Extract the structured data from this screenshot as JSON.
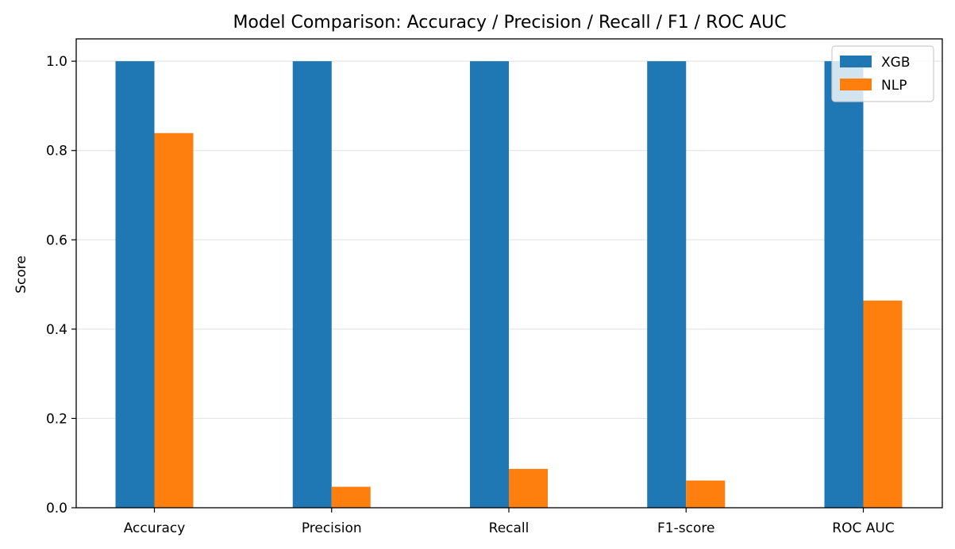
{
  "chart_data": {
    "type": "bar",
    "title": "Model Comparison: Accuracy / Precision / Recall / F1 / ROC AUC",
    "xlabel": "",
    "ylabel": "Score",
    "categories": [
      "Accuracy",
      "Precision",
      "Recall",
      "F1-score",
      "ROC AUC"
    ],
    "series": [
      {
        "name": "XGB",
        "color": "#1f77b4",
        "values": [
          1.0,
          1.0,
          1.0,
          1.0,
          1.0
        ]
      },
      {
        "name": "NLP",
        "color": "#ff7f0e",
        "values": [
          0.839,
          0.047,
          0.087,
          0.061,
          0.464
        ]
      }
    ],
    "ylim": [
      0,
      1.05
    ],
    "yticks": [
      "0.0",
      "0.2",
      "0.4",
      "0.6",
      "0.8",
      "1.0"
    ],
    "grid": "horizontal",
    "legend": "top-right"
  }
}
